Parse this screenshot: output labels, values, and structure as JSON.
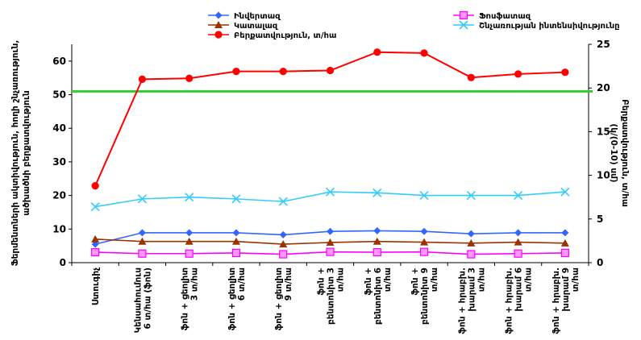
{
  "chart_data": {
    "type": "line",
    "categories": [
      [
        "Ստուգիչ"
      ],
      [
        "Կենսահումուս",
        "6 տ/հա (ֆոն)"
      ],
      [
        "ֆոն + ցեոլիտ",
        "3 տ/հա"
      ],
      [
        "ֆոն + ցեոլիտ",
        "6 տ/հա"
      ],
      [
        "ֆոն + ցեոլիտ",
        "9 տ/հա"
      ],
      [
        "ֆոն +",
        "բենտոնիտ 3",
        "տ/հա"
      ],
      [
        "ֆոն +",
        "բենտոնիտ 6",
        "տ/հա"
      ],
      [
        "ֆոն +",
        "բենտոնիտ 9",
        "տ/հա"
      ],
      [
        "ֆոն + հրաբխ.",
        "խարամ 3",
        "տ/հա"
      ],
      [
        "ֆոն + հրաբխ.",
        "խարամ 6",
        "տ/հա"
      ],
      [
        "ֆոն + հրաբխ.",
        "խարամ 9",
        "տ/հա"
      ]
    ],
    "series": [
      {
        "name": "Ինվերտազ",
        "axis": "left",
        "color": "#3366ff",
        "marker": "diamond",
        "values": [
          5.5,
          8.9,
          8.9,
          8.9,
          8.3,
          9.3,
          9.5,
          9.3,
          8.6,
          8.9,
          8.9
        ]
      },
      {
        "name": "Կատալազ",
        "axis": "left",
        "color": "#993300",
        "marker": "triangle",
        "values": [
          7.0,
          6.3,
          6.3,
          6.3,
          5.5,
          6.0,
          6.3,
          6.1,
          5.8,
          6.1,
          5.8
        ]
      },
      {
        "name": "Բերքատվություն, տ/հա",
        "axis": "right",
        "color": "#ff0000",
        "marker": "circle",
        "values": [
          8.8,
          21.0,
          21.1,
          21.9,
          21.9,
          22.0,
          24.1,
          24.0,
          21.2,
          21.6,
          21.8
        ]
      },
      {
        "name": "Ֆոսֆատազ",
        "axis": "left",
        "color": "#ff00ff",
        "marker": "square",
        "values": [
          3.1,
          2.7,
          2.7,
          2.9,
          2.5,
          3.2,
          3.1,
          3.2,
          2.5,
          2.7,
          2.9
        ]
      },
      {
        "name": "Շնչառության ինտենսիվությունը",
        "axis": "right",
        "color": "#33ccff",
        "marker": "x",
        "values": [
          6.4,
          7.3,
          7.5,
          7.3,
          7.0,
          8.1,
          8.0,
          7.7,
          7.7,
          7.7,
          8.1
        ]
      }
    ],
    "reference_line": {
      "axis": "left",
      "value": 51,
      "color": "#33cc33"
    },
    "ylim": [
      0,
      65
    ],
    "yticks": [
      0,
      10,
      20,
      30,
      40,
      50,
      60
    ],
    "y2lim": [
      0,
      25
    ],
    "y2ticks": [
      0,
      5,
      10,
      15,
      20,
      25
    ],
    "ylabel_lines": [
      "Ֆերմենտների ակտիվություն, հողի շնչառություն,",
      "ածխածնի բերքատվություն"
    ],
    "y2label_lines": [
      "Բերքատվություն, տ/հա",
      "(կ/(0-10) սմ)"
    ],
    "legend_position": "top",
    "grid": false
  }
}
